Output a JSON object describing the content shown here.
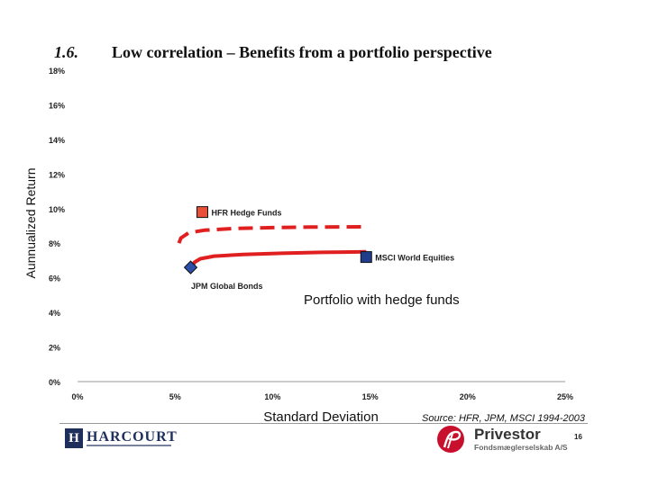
{
  "header": {
    "section_number": "1.6.",
    "title": "Low correlation – Benefits from a portfolio perspective"
  },
  "chart_data": {
    "type": "scatter",
    "title": "",
    "xlabel": "Standard Deviation",
    "ylabel": "Aunnualized Return",
    "xlim": [
      0,
      25
    ],
    "ylim": [
      0,
      18
    ],
    "x_ticks": [
      0,
      5,
      10,
      15,
      20,
      25
    ],
    "x_tick_labels": [
      "0%",
      "5%",
      "10%",
      "15%",
      "20%",
      "25%"
    ],
    "y_ticks": [
      0,
      2,
      4,
      6,
      8,
      10,
      12,
      14,
      16,
      18
    ],
    "y_tick_labels": [
      "0%",
      "2%",
      "4%",
      "6%",
      "8%",
      "10%",
      "12%",
      "14%",
      "16%",
      "18%"
    ],
    "grid": false,
    "points": [
      {
        "name": "HFR Hedge Funds",
        "x": 6.4,
        "y": 9.8,
        "marker": "square",
        "color": "#e8503a"
      },
      {
        "name": "MSCI World Equities",
        "x": 14.8,
        "y": 7.2,
        "marker": "square",
        "color": "#1f3d8a"
      },
      {
        "name": "JPM Global Bonds",
        "x": 5.8,
        "y": 6.6,
        "marker": "diamond",
        "color": "#2b4ea8"
      }
    ],
    "curves": [
      {
        "style": "solid",
        "color": "#e02020",
        "x": [
          5.9,
          6.0,
          6.3,
          7.0,
          8.5,
          10.5,
          12.5,
          14.8
        ],
        "y": [
          6.7,
          6.9,
          7.1,
          7.25,
          7.35,
          7.42,
          7.47,
          7.5
        ]
      },
      {
        "style": "dashed",
        "color": "#e02020",
        "x": [
          5.2,
          5.3,
          5.7,
          6.5,
          8.0,
          10.0,
          12.0,
          14.8
        ],
        "y": [
          8.0,
          8.3,
          8.6,
          8.75,
          8.85,
          8.9,
          8.93,
          8.95
        ]
      }
    ],
    "annotations": [
      "Portfolio with hedge funds"
    ]
  },
  "footer": {
    "source": "Source: HFR, JPM, MSCI 1994-2003",
    "page_number": "16",
    "left_logo": {
      "mark": "H",
      "text": "HARCOURT"
    },
    "right_logo": {
      "name": "Privestor",
      "subtitle": "Fondsmæglerselskab A/S"
    }
  }
}
